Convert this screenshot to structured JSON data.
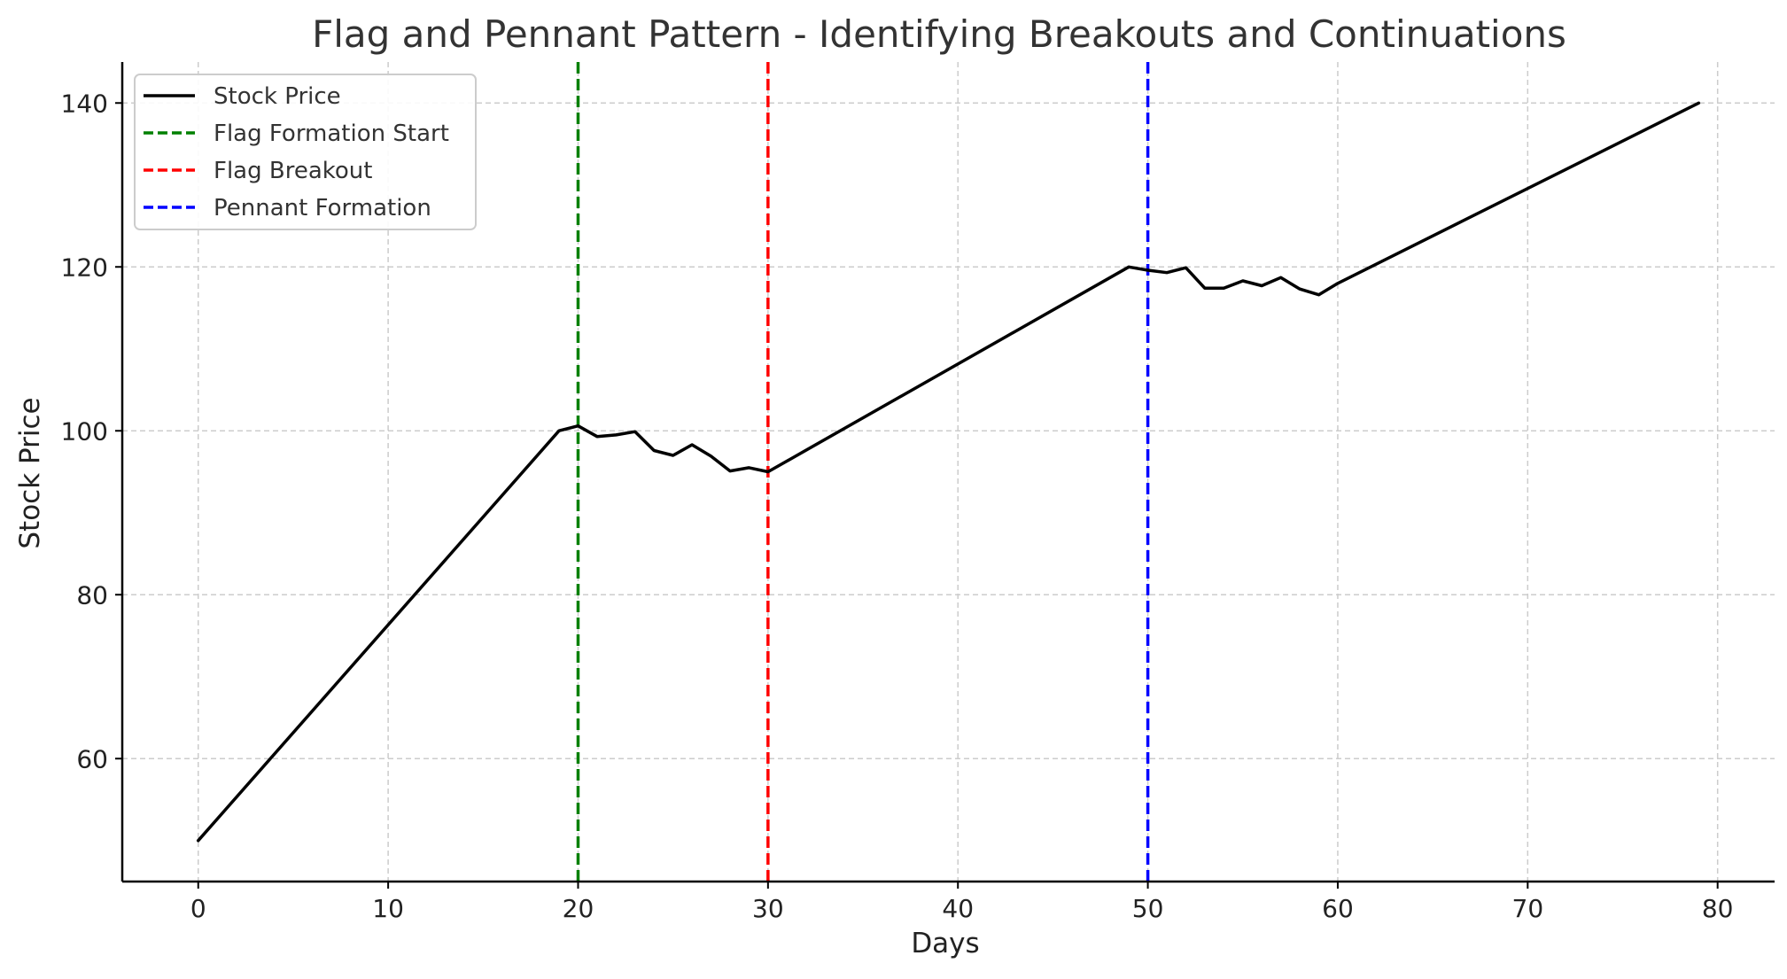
{
  "chart_data": {
    "type": "line",
    "title": "Flag and Pennant Pattern - Identifying Breakouts and Continuations",
    "xlabel": "Days",
    "ylabel": "Stock Price",
    "xlim": [
      -4,
      83
    ],
    "ylim": [
      45,
      145
    ],
    "xticks": [
      0,
      10,
      20,
      30,
      40,
      50,
      60,
      70,
      80
    ],
    "yticks": [
      60,
      80,
      100,
      120,
      140
    ],
    "grid": true,
    "legend_position": "upper-left",
    "series": [
      {
        "name": "Stock Price",
        "color": "#000000",
        "style": "solid",
        "x": [
          0,
          19,
          20,
          21,
          22,
          23,
          24,
          25,
          26,
          27,
          28,
          29,
          30,
          49,
          50,
          51,
          52,
          53,
          54,
          55,
          56,
          57,
          58,
          59,
          60,
          79
        ],
        "y": [
          50,
          100,
          100.6,
          99.3,
          99.5,
          99.9,
          97.6,
          97.0,
          98.3,
          96.9,
          95.1,
          95.5,
          95,
          120,
          119.6,
          119.3,
          119.9,
          117.4,
          117.4,
          118.3,
          117.7,
          118.7,
          117.3,
          116.6,
          118.0,
          140
        ]
      }
    ],
    "vertical_lines": [
      {
        "name": "Flag Formation Start",
        "x": 20,
        "color": "#008000",
        "style": "dashed"
      },
      {
        "name": "Flag Breakout",
        "x": 30,
        "color": "#ff0000",
        "style": "dashed"
      },
      {
        "name": "Pennant Formation",
        "x": 50,
        "color": "#0000ff",
        "style": "dashed"
      }
    ]
  }
}
